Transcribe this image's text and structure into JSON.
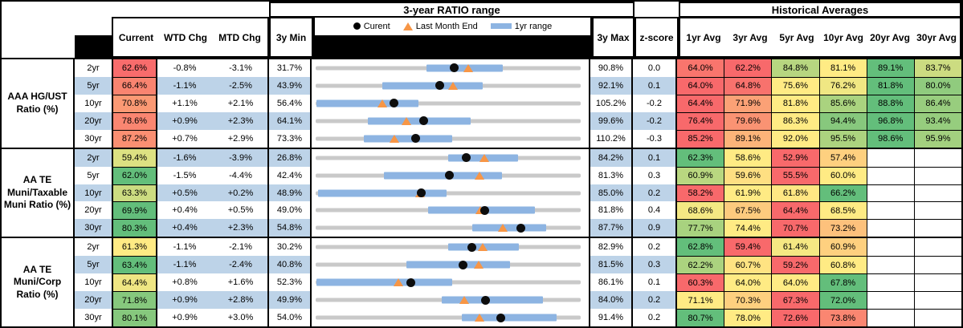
{
  "header": {
    "ratio_range_title": "3-year RATIO range",
    "historical_title": "Historical Averages",
    "col_current": "Current",
    "col_wtd": "WTD Chg",
    "col_mtd": "MTD Chg",
    "col_3y_min": "3y Min",
    "col_3y_max": "3y Max",
    "col_z": "z-score",
    "avg_cols": [
      "1yr Avg",
      "3yr Avg",
      "5yr Avg",
      "10yr Avg",
      "20yr Avg",
      "30yr Avg"
    ],
    "legend": {
      "current_label": "Curent",
      "last_month_label": "Last Month End",
      "range_label": "1yr range",
      "current_icon": "black-dot-icon",
      "last_month_icon": "orange-triangle-icon",
      "range_icon": "blue-bar-icon"
    }
  },
  "colors": {
    "heat_red": "#F8696B",
    "heat_yellow": "#FFEB84",
    "heat_green": "#63BE7B",
    "band_blue": "#BDD3E8",
    "bar_blue": "#8DB4E2",
    "track_gray": "#C9C9C9",
    "triangle_orange": "#F79646",
    "dot_black": "#0d0d0d"
  },
  "chart_data": {
    "type": "table",
    "note": "Each row has a range strip-chart: gray track spans 3y Min..3y Max, blue bar is 1yr range, black dot = Current, orange triangle = Last Month End (Current minus MTD Chg). Heatmap colors are a red-yellow-green 3-color scale across Current + Avg columns per row.",
    "groups": [
      {
        "label": "AAA HG/UST Ratio (%)",
        "rows": [
          {
            "tenor": "2yr",
            "current": "62.6%",
            "wtd": "-0.8%",
            "mtd": "-3.1%",
            "min": "31.7%",
            "max": "90.8%",
            "z": "0.0",
            "range_1yr": [
              56.4,
              73.5
            ],
            "avgs": [
              "64.0%",
              "62.2%",
              "84.8%",
              "81.1%",
              "89.1%",
              "83.7%"
            ]
          },
          {
            "tenor": "5yr",
            "current": "66.4%",
            "wtd": "-1.1%",
            "mtd": "-2.5%",
            "min": "43.9%",
            "max": "92.1%",
            "z": "0.1",
            "range_1yr": [
              56.0,
              74.3
            ],
            "avgs": [
              "64.0%",
              "64.8%",
              "75.6%",
              "76.2%",
              "81.8%",
              "80.0%"
            ]
          },
          {
            "tenor": "10yr",
            "current": "70.8%",
            "wtd": "+1.1%",
            "mtd": "+2.1%",
            "min": "56.4%",
            "max": "105.2%",
            "z": "-0.2",
            "range_1yr": [
              56.6,
              75.3
            ],
            "avgs": [
              "64.4%",
              "71.9%",
              "81.8%",
              "85.6%",
              "88.8%",
              "86.4%"
            ]
          },
          {
            "tenor": "20yr",
            "current": "78.6%",
            "wtd": "+0.9%",
            "mtd": "+2.3%",
            "min": "64.1%",
            "max": "99.6%",
            "z": "-0.2",
            "range_1yr": [
              71.1,
              84.9
            ],
            "avgs": [
              "76.4%",
              "79.6%",
              "86.3%",
              "94.4%",
              "96.8%",
              "93.4%"
            ]
          },
          {
            "tenor": "30yr",
            "current": "87.2%",
            "wtd": "+0.7%",
            "mtd": "+2.9%",
            "min": "73.3%",
            "max": "110.2%",
            "z": "-0.3",
            "range_1yr": [
              80.0,
              92.3
            ],
            "avgs": [
              "85.2%",
              "89.1%",
              "92.0%",
              "95.5%",
              "98.6%",
              "95.9%"
            ]
          }
        ]
      },
      {
        "label": "AA TE Muni/Taxable Muni Ratio (%)",
        "rows": [
          {
            "tenor": "2yr",
            "current": "59.4%",
            "wtd": "-1.6%",
            "mtd": "-3.9%",
            "min": "26.8%",
            "max": "84.2%",
            "z": "0.1",
            "range_1yr": [
              55.5,
              70.6
            ],
            "avgs": [
              "62.3%",
              "58.6%",
              "52.9%",
              "57.4%",
              null,
              null
            ]
          },
          {
            "tenor": "5yr",
            "current": "62.0%",
            "wtd": "-1.5%",
            "mtd": "-4.4%",
            "min": "42.4%",
            "max": "81.3%",
            "z": "0.3",
            "range_1yr": [
              52.4,
              69.8
            ],
            "avgs": [
              "60.9%",
              "59.6%",
              "55.5%",
              "60.0%",
              null,
              null
            ]
          },
          {
            "tenor": "10yr",
            "current": "63.3%",
            "wtd": "+0.5%",
            "mtd": "+0.2%",
            "min": "48.9%",
            "max": "85.0%",
            "z": "0.2",
            "range_1yr": [
              49.2,
              66.7
            ],
            "avgs": [
              "58.2%",
              "61.9%",
              "61.8%",
              "66.2%",
              null,
              null
            ]
          },
          {
            "tenor": "20yr",
            "current": "69.9%",
            "wtd": "+0.4%",
            "mtd": "+0.5%",
            "min": "49.0%",
            "max": "81.8%",
            "z": "0.4",
            "range_1yr": [
              62.9,
              76.1
            ],
            "avgs": [
              "68.6%",
              "67.5%",
              "64.4%",
              "68.5%",
              null,
              null
            ]
          },
          {
            "tenor": "30yr",
            "current": "80.3%",
            "wtd": "+0.4%",
            "mtd": "+2.3%",
            "min": "54.8%",
            "max": "87.7%",
            "z": "0.9",
            "range_1yr": [
              74.2,
              83.4
            ],
            "avgs": [
              "77.7%",
              "74.4%",
              "70.7%",
              "73.2%",
              null,
              null
            ]
          }
        ]
      },
      {
        "label": "AA TE Muni/Corp Ratio (%)",
        "rows": [
          {
            "tenor": "2yr",
            "current": "61.3%",
            "wtd": "-1.1%",
            "mtd": "-2.1%",
            "min": "30.2%",
            "max": "82.9%",
            "z": "0.2",
            "range_1yr": [
              56.6,
              70.6
            ],
            "avgs": [
              "62.8%",
              "59.4%",
              "61.4%",
              "60.9%",
              null,
              null
            ]
          },
          {
            "tenor": "5yr",
            "current": "63.4%",
            "wtd": "-1.1%",
            "mtd": "-2.4%",
            "min": "40.8%",
            "max": "81.5%",
            "z": "0.3",
            "range_1yr": [
              54.7,
              70.6
            ],
            "avgs": [
              "62.2%",
              "60.7%",
              "59.2%",
              "60.8%",
              null,
              null
            ]
          },
          {
            "tenor": "10yr",
            "current": "64.4%",
            "wtd": "+0.8%",
            "mtd": "+1.6%",
            "min": "52.3%",
            "max": "86.1%",
            "z": "0.1",
            "range_1yr": [
              52.4,
              69.7
            ],
            "avgs": [
              "60.3%",
              "64.0%",
              "64.0%",
              "67.8%",
              null,
              null
            ]
          },
          {
            "tenor": "20yr",
            "current": "71.8%",
            "wtd": "+0.9%",
            "mtd": "+2.8%",
            "min": "49.9%",
            "max": "84.0%",
            "z": "0.2",
            "range_1yr": [
              66.1,
              79.1
            ],
            "avgs": [
              "71.1%",
              "70.3%",
              "67.3%",
              "72.0%",
              null,
              null
            ]
          },
          {
            "tenor": "30yr",
            "current": "80.1%",
            "wtd": "+0.9%",
            "mtd": "+3.0%",
            "min": "54.0%",
            "max": "91.4%",
            "z": "0.2",
            "range_1yr": [
              74.6,
              88.0
            ],
            "avgs": [
              "80.7%",
              "78.0%",
              "72.6%",
              "73.8%",
              null,
              null
            ]
          }
        ]
      }
    ]
  }
}
